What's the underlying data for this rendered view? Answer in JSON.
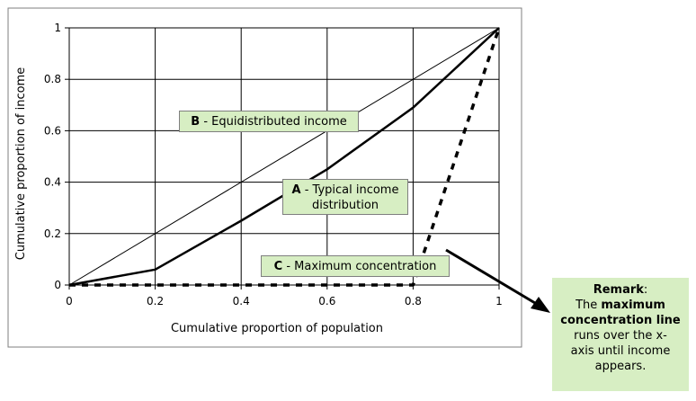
{
  "chart_data": {
    "type": "line",
    "xlabel": "Cumulative proportion of population",
    "ylabel": "Cumulative proportion of income",
    "xlim": [
      0,
      1
    ],
    "ylim": [
      0,
      1
    ],
    "x_ticks": [
      "0",
      "0.2",
      "0.4",
      "0.6",
      "0.8",
      "1"
    ],
    "y_ticks": [
      "0",
      "0.2",
      "0.4",
      "0.6",
      "0.8",
      "1"
    ],
    "grid": true,
    "series": [
      {
        "name": "B - Equidistributed income",
        "style": "thin solid",
        "x": [
          0,
          1
        ],
        "y": [
          0,
          1
        ]
      },
      {
        "name": "A - Typical income distribution",
        "style": "bold solid",
        "x": [
          0,
          0.2,
          0.4,
          0.6,
          0.8,
          1
        ],
        "y": [
          0,
          0.06,
          0.25,
          0.45,
          0.69,
          1
        ]
      },
      {
        "name": "C - Maximum concentration",
        "style": "bold dashed",
        "x": [
          0,
          0.8,
          1
        ],
        "y": [
          0,
          0,
          1
        ]
      }
    ],
    "annotations": {
      "b_letter": "B",
      "b_text": "- Equidistributed income",
      "a_letter": "A",
      "a_text_line1": "- Typical income",
      "a_text_line2": "distribution",
      "c_letter": "C",
      "c_text": "- Maximum concentration"
    },
    "remark": {
      "title": "Remark",
      "colon": ":",
      "line1_pre": "The ",
      "line1_bold": "maximum",
      "line2_bold": "concentration line",
      "line3": "runs over the x-",
      "line4": "axis until income",
      "line5": "appears."
    }
  },
  "colors": {
    "annotation_bg": "#d7eec3",
    "line": "#000000",
    "grid": "#000000"
  }
}
